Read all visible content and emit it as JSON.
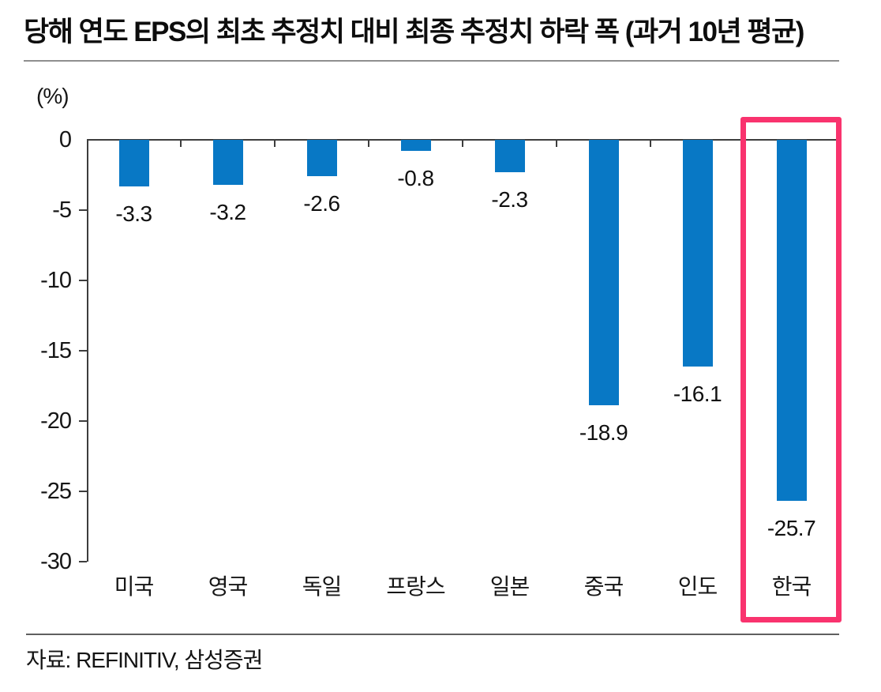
{
  "header": {
    "title": "당해 연도 EPS의 최초 추정치 대비 최종 추정치 하락 폭 (과거 10년 평균)"
  },
  "footer": {
    "source": "자료: REFINITIV, 삼성증권"
  },
  "chart_data": {
    "type": "bar",
    "title": "당해 연도 EPS의 최초 추정치 대비 최종 추정치 하락 폭 (과거 10년 평균)",
    "unit_label": "(%)",
    "categories": [
      "미국",
      "영국",
      "독일",
      "프랑스",
      "일본",
      "중국",
      "인도",
      "한국"
    ],
    "values": [
      -3.3,
      -3.2,
      -2.6,
      -0.8,
      -2.3,
      -18.9,
      -16.1,
      -25.7
    ],
    "value_labels": [
      "-3.3",
      "-3.2",
      "-2.6",
      "-0.8",
      "-2.3",
      "-18.9",
      "-16.1",
      "-25.7"
    ],
    "xlabel": "",
    "ylabel": "(%)",
    "ylim": [
      -30,
      0
    ],
    "yticks": [
      0,
      -5,
      -10,
      -15,
      -20,
      -25,
      -30
    ],
    "ytick_labels": [
      "0",
      "-5",
      "-10",
      "-15",
      "-20",
      "-25",
      "-30"
    ],
    "grid": false,
    "legend": "none",
    "bar_color": "#0878c5",
    "highlight": {
      "category": "한국",
      "index": 7,
      "box_color": "#f9336e"
    }
  }
}
